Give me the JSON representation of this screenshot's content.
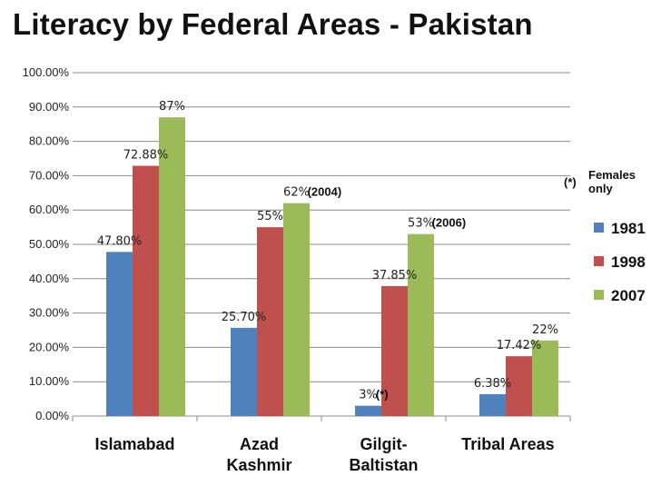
{
  "chart_data": {
    "type": "bar",
    "title": "Literacy by Federal Areas - Pakistan",
    "categories": [
      [
        "Islamabad"
      ],
      [
        "Azad",
        "Kashmir"
      ],
      [
        "Gilgit-",
        "Baltistan"
      ],
      [
        "Tribal Areas"
      ]
    ],
    "series": [
      {
        "name": "1981",
        "color": "#4f81bd",
        "values": [
          47.8,
          25.7,
          3,
          6.38
        ],
        "labels": [
          "47.80%",
          "25.70%",
          "3%",
          "6.38%"
        ],
        "notes": [
          "",
          "",
          "(*)",
          ""
        ]
      },
      {
        "name": "1998",
        "color": "#c0504d",
        "values": [
          72.88,
          55,
          37.85,
          17.42
        ],
        "labels": [
          "72.88%",
          "55%",
          "37.85%",
          "17.42%"
        ],
        "notes": [
          "",
          "",
          "",
          ""
        ]
      },
      {
        "name": "2007",
        "color": "#9bbb59",
        "values": [
          87,
          62,
          53,
          22
        ],
        "labels": [
          "87%",
          "62%",
          "53%",
          "22%"
        ],
        "notes": [
          "",
          "(2004)",
          "(2006)",
          ""
        ]
      }
    ],
    "ylim": [
      0,
      100
    ],
    "yticks": [
      "0.00%",
      "10.00%",
      "20.00%",
      "30.00%",
      "40.00%",
      "50.00%",
      "60.00%",
      "70.00%",
      "80.00%",
      "90.00%",
      "100.00%"
    ],
    "grid": true,
    "legend_position": "right",
    "footnote": {
      "mark": "(*)",
      "lines": [
        "Females",
        "only"
      ]
    }
  }
}
